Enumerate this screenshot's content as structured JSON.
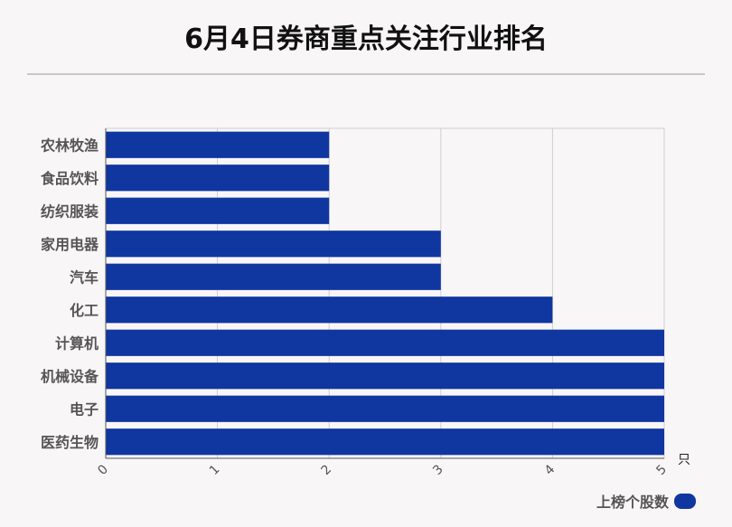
{
  "chart_data": {
    "type": "bar",
    "orientation": "horizontal",
    "title": "6月4日券商重点关注行业排名",
    "categories": [
      "农林牧渔",
      "食品饮料",
      "纺织服装",
      "家用电器",
      "汽车",
      "化工",
      "计算机",
      "机械设备",
      "电子",
      "医药生物"
    ],
    "series": [
      {
        "name": "上榜个股数",
        "values": [
          2,
          2,
          2,
          3,
          3,
          4,
          5,
          5,
          5,
          5
        ]
      }
    ],
    "xlim": [
      0,
      5
    ],
    "xticks": [
      "0",
      "1",
      "2",
      "3",
      "4",
      "5"
    ],
    "xunit": "只",
    "grid": true,
    "legend_position": "bottom-right",
    "colors": {
      "bar": "#1036a0",
      "grid": "#cfcfcf",
      "background": "#f9f6f7"
    }
  }
}
